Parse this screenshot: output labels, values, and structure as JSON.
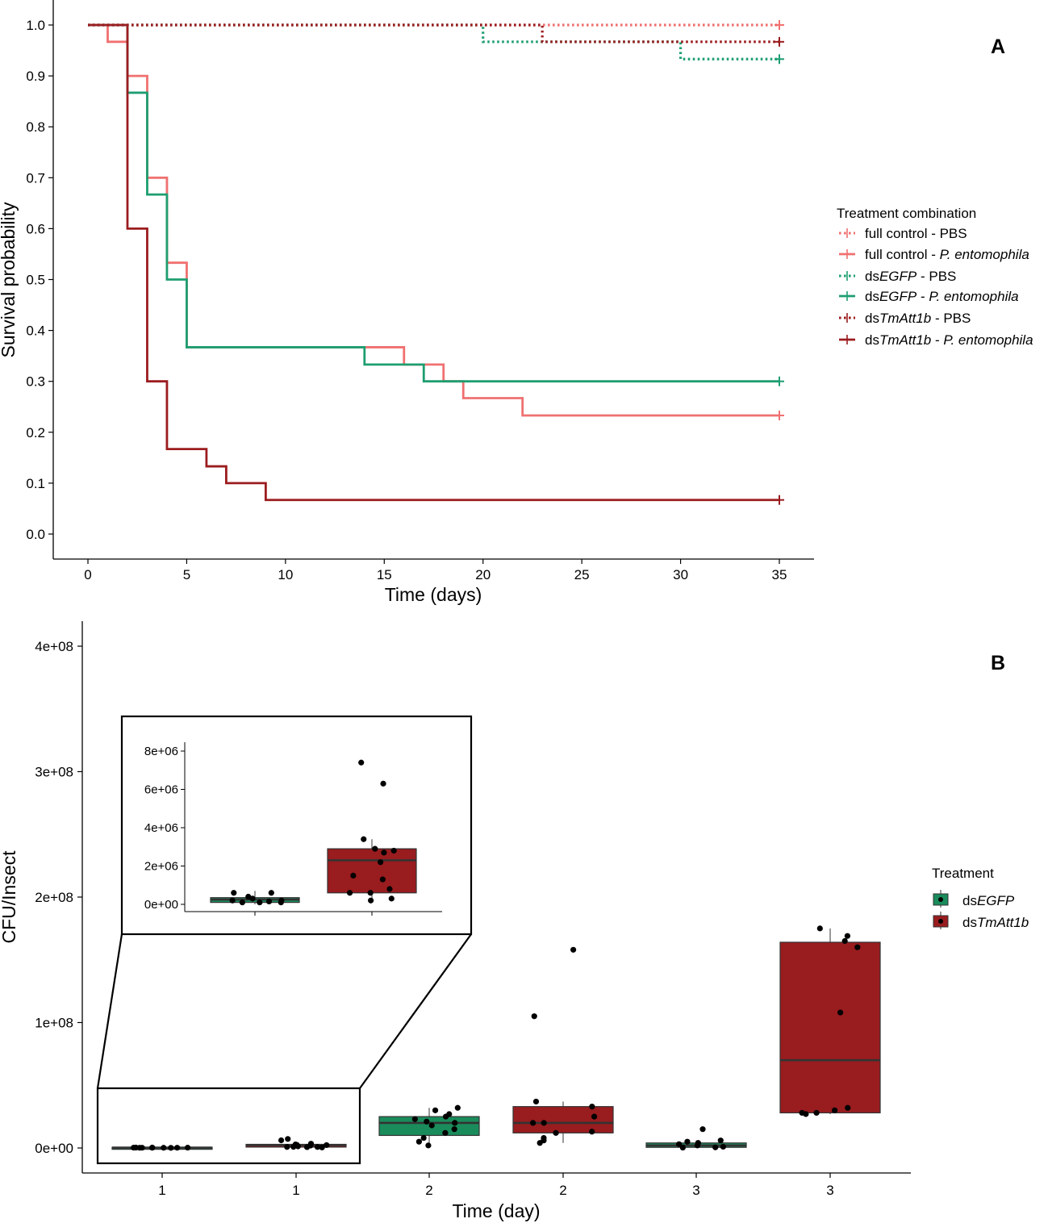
{
  "chart_data": [
    {
      "type": "line",
      "subtype": "kaplan-meier step",
      "panel_label": "A",
      "xlabel": "Time (days)",
      "ylabel": "Survival probability",
      "xlim": [
        0,
        35
      ],
      "ylim": [
        0,
        1
      ],
      "x_ticks": [
        "0",
        "5",
        "10",
        "15",
        "20",
        "25",
        "30",
        "35"
      ],
      "x_tick_values": [
        0,
        5,
        10,
        15,
        20,
        25,
        30,
        35
      ],
      "y_ticks": [
        "0.0",
        "0.1",
        "0.2",
        "0.3",
        "0.4",
        "0.5",
        "0.6",
        "0.7",
        "0.8",
        "0.9",
        "1.0"
      ],
      "y_tick_values": [
        0,
        0.1,
        0.2,
        0.3,
        0.4,
        0.5,
        0.6,
        0.7,
        0.8,
        0.9,
        1.0
      ],
      "legend_title": "Treatment combination",
      "legend_position": "right",
      "series": [
        {
          "name": "full control - PBS",
          "label_plain": "full control - ",
          "label_italic": "",
          "label_suffix": "PBS",
          "color": "#f07070",
          "dash": "dotted",
          "steps": [
            [
              0,
              1.0
            ],
            [
              35,
              1.0
            ]
          ],
          "censor": [
            35,
            1.0
          ]
        },
        {
          "name": "full control - P. entomophila",
          "label_plain": "full control - ",
          "label_italic": "P. entomophila",
          "label_suffix": "",
          "color": "#f07070",
          "dash": "solid",
          "steps": [
            [
              0,
              1.0
            ],
            [
              1,
              0.967
            ],
            [
              2,
              0.9
            ],
            [
              3,
              0.7
            ],
            [
              4,
              0.533
            ],
            [
              5,
              0.367
            ],
            [
              16,
              0.333
            ],
            [
              18,
              0.3
            ],
            [
              19,
              0.267
            ],
            [
              22,
              0.233
            ],
            [
              35,
              0.233
            ]
          ],
          "censor": [
            35,
            0.233
          ]
        },
        {
          "name": "dsEGFP - PBS",
          "label_plain": "ds",
          "label_italic": "EGFP",
          "label_suffix": " - PBS",
          "color": "#1e9e70",
          "dash": "dotted",
          "steps": [
            [
              0,
              1.0
            ],
            [
              20,
              0.967
            ],
            [
              30,
              0.933
            ],
            [
              35,
              0.933
            ]
          ],
          "censor": [
            35,
            0.933
          ]
        },
        {
          "name": "dsEGFP - P. entomophila",
          "label_plain": "ds",
          "label_italic": "EGFP",
          "label_suffix": " - ",
          "label_italic2": "P. entomophila",
          "color": "#1e9e70",
          "dash": "solid",
          "steps": [
            [
              0,
              1.0
            ],
            [
              2,
              0.867
            ],
            [
              3,
              0.667
            ],
            [
              4,
              0.5
            ],
            [
              5,
              0.367
            ],
            [
              14,
              0.333
            ],
            [
              17,
              0.3
            ],
            [
              35,
              0.3
            ]
          ],
          "censor": [
            35,
            0.3
          ]
        },
        {
          "name": "dsTmAtt1b - PBS",
          "label_plain": "ds",
          "label_italic": "TmAtt1b",
          "label_suffix": " - PBS",
          "color": "#9b1c1f",
          "dash": "dotted",
          "steps": [
            [
              0,
              1.0
            ],
            [
              23,
              0.967
            ],
            [
              35,
              0.967
            ]
          ],
          "censor": [
            35,
            0.967
          ]
        },
        {
          "name": "dsTmAtt1b - P. entomophila",
          "label_plain": "ds",
          "label_italic": "TmAtt1b",
          "label_suffix": " - ",
          "label_italic2": "P. entomophila",
          "color": "#9b1c1f",
          "dash": "solid",
          "steps": [
            [
              0,
              1.0
            ],
            [
              2,
              0.6
            ],
            [
              3,
              0.3
            ],
            [
              4,
              0.167
            ],
            [
              6,
              0.133
            ],
            [
              7,
              0.1
            ],
            [
              9,
              0.067
            ],
            [
              35,
              0.067
            ]
          ],
          "censor": [
            35,
            0.067
          ]
        }
      ]
    },
    {
      "type": "box",
      "panel_label": "B",
      "xlabel": "Time (day)",
      "ylabel": "CFU/Insect",
      "ylim": [
        -15000000,
        435000000
      ],
      "y_ticks": [
        "0e+00",
        "1e+08",
        "2e+08",
        "3e+08",
        "4e+08"
      ],
      "y_tick_values": [
        0,
        100000000,
        200000000,
        300000000,
        400000000
      ],
      "categories": [
        "1",
        "1",
        "2",
        "2",
        "3",
        "3"
      ],
      "legend_title": "Treatment",
      "legend_position": "right",
      "legend": [
        {
          "prefix": "ds",
          "italic": "EGFP",
          "color": "#1a8c5c"
        },
        {
          "prefix": "ds",
          "italic": "TmAtt1b",
          "color": "#991c1f"
        }
      ],
      "boxes": [
        {
          "category": "1",
          "treatment": "dsEGFP",
          "color": "#1a8c5c",
          "q1": 100000,
          "median": 250000,
          "q3": 550000,
          "wlo": 0,
          "whi": 900000,
          "points": [
            200000,
            150000,
            300000,
            250000,
            200000,
            100000,
            300000,
            250000,
            200000,
            150000
          ]
        },
        {
          "category": "1",
          "treatment": "dsTmAtt1b",
          "color": "#991c1f",
          "q1": 700000,
          "median": 2300000,
          "q3": 2900000,
          "wlo": 300000,
          "whi": 3300000,
          "points": [
            7200000,
            6100000,
            3400000,
            2800000,
            2400000,
            2300000,
            1900000,
            1300000,
            900000,
            800000,
            800000,
            700000,
            400000
          ]
        },
        {
          "category": "2",
          "treatment": "dsEGFP",
          "color": "#1a8c5c",
          "q1": 10000000,
          "median": 20000000,
          "q3": 25000000,
          "wlo": 2000000,
          "whi": 32000000,
          "points": [
            32000000,
            30000000,
            27000000,
            25000000,
            23000000,
            21000000,
            20000000,
            18000000,
            15000000,
            12000000,
            8000000,
            5000000,
            2000000
          ]
        },
        {
          "category": "2",
          "treatment": "dsTmAtt1b",
          "color": "#991c1f",
          "q1": 12000000,
          "median": 20000000,
          "q3": 33000000,
          "wlo": 4000000,
          "whi": 37000000,
          "points": [
            158000000,
            105000000,
            37000000,
            33000000,
            25000000,
            20000000,
            20000000,
            13000000,
            12000000,
            8000000,
            6000000,
            4000000
          ]
        },
        {
          "category": "3",
          "treatment": "dsEGFP",
          "color": "#1a8c5c",
          "q1": 500000,
          "median": 2000000,
          "q3": 4000000,
          "wlo": 0,
          "whi": 6000000,
          "points": [
            15000000,
            6000000,
            5000000,
            4000000,
            3000000,
            2000000,
            1000000,
            500000,
            300000
          ]
        },
        {
          "category": "3",
          "treatment": "dsTmAtt1b",
          "color": "#991c1f",
          "q1": 28000000,
          "median": 70000000,
          "q3": 164000000,
          "wlo": 27000000,
          "whi": 175000000,
          "points": [
            175000000,
            169000000,
            165000000,
            160000000,
            108000000,
            32000000,
            30000000,
            28000000,
            28000000,
            27000000
          ]
        }
      ],
      "inset": {
        "ylim": [
          -400000,
          8500000
        ],
        "y_ticks": [
          "0e+00",
          "2e+06",
          "4e+06",
          "6e+06",
          "8e+06"
        ],
        "y_tick_values": [
          0,
          2000000,
          4000000,
          6000000,
          8000000
        ],
        "boxes": [
          {
            "treatment": "dsEGFP",
            "color": "#1a8c5c",
            "q1": 100000,
            "median": 250000,
            "q3": 350000,
            "wlo": 0,
            "whi": 700000,
            "points": [
              600000,
              600000,
              400000,
              300000,
              200000,
              200000,
              150000,
              100000,
              100000,
              100000
            ]
          },
          {
            "treatment": "dsTmAtt1b",
            "color": "#991c1f",
            "q1": 600000,
            "median": 2300000,
            "q3": 2900000,
            "wlo": 300000,
            "whi": 3400000,
            "points": [
              7400000,
              6300000,
              3400000,
              2900000,
              2800000,
              2700000,
              2200000,
              1500000,
              1300000,
              800000,
              600000,
              600000,
              300000,
              200000
            ]
          }
        ]
      }
    }
  ]
}
